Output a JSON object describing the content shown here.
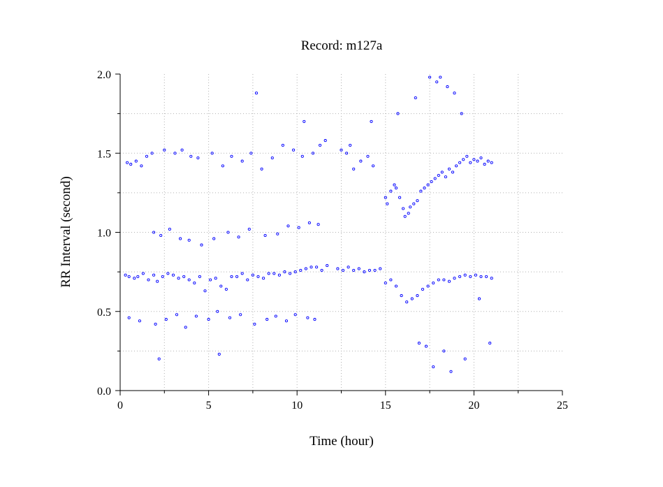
{
  "chart_data": {
    "type": "scatter",
    "title": "Record:  m127a",
    "xlabel": "Time (hour)",
    "ylabel": "RR Interval (second)",
    "xlim": [
      0,
      25
    ],
    "ylim": [
      0.0,
      2.0
    ],
    "x_ticks": [
      0,
      5,
      10,
      15,
      20,
      25
    ],
    "x_tick_labels": [
      "0",
      "5",
      "10",
      "15",
      "20",
      "25"
    ],
    "y_ticks": [
      0.0,
      0.5,
      1.0,
      1.5,
      2.0
    ],
    "y_tick_labels": [
      "0.0",
      "0.5",
      "1.0",
      "1.5",
      "2.0"
    ],
    "grid": true,
    "marker": "open-circle",
    "color": "#0000ff",
    "series": [
      {
        "values_description_omitted": false,
        "x": [
          0.3,
          0.5,
          0.8,
          1.0,
          1.3,
          1.6,
          1.9,
          2.1,
          2.4,
          2.7,
          3.0,
          3.3,
          3.6,
          3.9,
          4.2,
          4.5,
          4.8,
          5.1,
          5.4,
          5.7,
          6.0,
          6.3,
          6.6,
          6.9,
          7.2,
          7.5,
          7.8,
          8.1,
          8.4,
          8.7,
          9.0,
          9.3,
          9.6,
          9.9,
          10.2,
          10.5,
          10.8,
          11.1,
          11.4,
          11.7,
          12.3,
          12.6,
          12.9,
          13.2,
          13.5,
          13.8,
          14.1,
          14.4,
          14.7,
          15.0,
          15.3,
          15.6,
          15.9,
          16.2,
          16.5,
          16.8,
          17.1,
          17.4,
          17.7,
          18.0,
          18.3,
          18.6,
          18.9,
          19.2,
          19.5,
          19.8,
          20.1,
          20.4,
          20.7,
          21.0
        ],
        "y": [
          0.73,
          0.72,
          0.71,
          0.72,
          0.74,
          0.7,
          0.73,
          0.69,
          0.72,
          0.74,
          0.73,
          0.71,
          0.72,
          0.7,
          0.68,
          0.72,
          0.63,
          0.7,
          0.71,
          0.66,
          0.64,
          0.72,
          0.72,
          0.74,
          0.7,
          0.73,
          0.72,
          0.71,
          0.74,
          0.74,
          0.73,
          0.75,
          0.74,
          0.75,
          0.76,
          0.77,
          0.78,
          0.78,
          0.76,
          0.79,
          0.77,
          0.76,
          0.78,
          0.76,
          0.77,
          0.75,
          0.76,
          0.76,
          0.77,
          0.68,
          0.7,
          0.66,
          0.6,
          0.56,
          0.58,
          0.6,
          0.64,
          0.66,
          0.68,
          0.7,
          0.7,
          0.69,
          0.71,
          0.72,
          0.73,
          0.72,
          0.73,
          0.72,
          0.72,
          0.71
        ]
      },
      {
        "x": [
          15.0,
          15.1,
          15.3,
          15.5,
          15.6,
          15.8,
          16.0,
          16.1,
          16.3,
          16.4,
          16.6,
          16.8,
          17.0,
          17.2,
          17.4,
          17.6,
          17.8,
          18.0,
          18.2,
          18.4,
          18.6,
          18.8,
          19.0,
          19.2,
          19.4,
          19.6,
          19.8,
          20.0,
          20.2,
          20.4,
          20.6,
          20.8,
          21.0
        ],
        "y": [
          1.22,
          1.18,
          1.26,
          1.3,
          1.28,
          1.22,
          1.15,
          1.1,
          1.12,
          1.16,
          1.18,
          1.2,
          1.26,
          1.28,
          1.3,
          1.32,
          1.34,
          1.36,
          1.38,
          1.35,
          1.4,
          1.38,
          1.42,
          1.44,
          1.46,
          1.48,
          1.44,
          1.46,
          1.45,
          1.47,
          1.43,
          1.45,
          1.44
        ]
      },
      {
        "x": [
          0.4,
          0.6,
          0.9,
          1.2,
          1.5,
          1.8,
          2.5,
          3.1,
          3.5,
          4.0,
          4.4,
          5.2,
          5.8,
          6.3,
          6.9,
          7.4,
          8.0,
          8.6,
          9.2,
          9.8,
          10.3,
          10.9,
          11.3,
          11.6,
          12.5,
          12.8,
          13.2,
          13.6,
          14.0,
          14.3,
          1.9,
          2.3,
          2.8,
          3.4,
          3.9,
          4.6,
          5.3,
          6.1,
          6.7,
          7.3,
          8.2,
          8.9,
          9.5,
          10.1,
          10.7,
          11.2,
          0.5,
          1.1,
          2.0,
          2.6,
          3.2,
          3.7,
          4.3,
          5.0,
          5.5,
          6.2,
          6.8,
          7.6,
          8.3,
          8.8,
          9.4,
          9.9,
          10.6,
          11.0,
          2.2,
          5.6,
          7.7,
          10.4,
          13.0,
          14.2,
          15.7,
          16.7,
          17.5,
          17.9,
          18.1,
          18.5,
          18.9,
          19.3,
          16.9,
          17.3,
          17.7,
          18.3,
          18.7,
          19.5,
          20.3,
          20.9
        ],
        "y": [
          1.44,
          1.43,
          1.45,
          1.42,
          1.48,
          1.5,
          1.52,
          1.5,
          1.52,
          1.48,
          1.47,
          1.5,
          1.42,
          1.48,
          1.45,
          1.5,
          1.4,
          1.47,
          1.55,
          1.52,
          1.48,
          1.5,
          1.55,
          1.58,
          1.52,
          1.5,
          1.4,
          1.45,
          1.48,
          1.42,
          1.0,
          0.98,
          1.02,
          0.96,
          0.95,
          0.92,
          0.96,
          1.0,
          0.97,
          1.02,
          0.98,
          0.99,
          1.04,
          1.03,
          1.06,
          1.05,
          0.46,
          0.44,
          0.42,
          0.45,
          0.48,
          0.4,
          0.47,
          0.45,
          0.5,
          0.46,
          0.48,
          0.42,
          0.45,
          0.47,
          0.44,
          0.48,
          0.46,
          0.45,
          0.2,
          0.23,
          1.88,
          1.7,
          1.55,
          1.7,
          1.75,
          1.85,
          1.98,
          1.95,
          1.98,
          1.92,
          1.88,
          1.75,
          0.3,
          0.28,
          0.15,
          0.25,
          0.12,
          0.2,
          0.58,
          0.3
        ]
      }
    ]
  }
}
